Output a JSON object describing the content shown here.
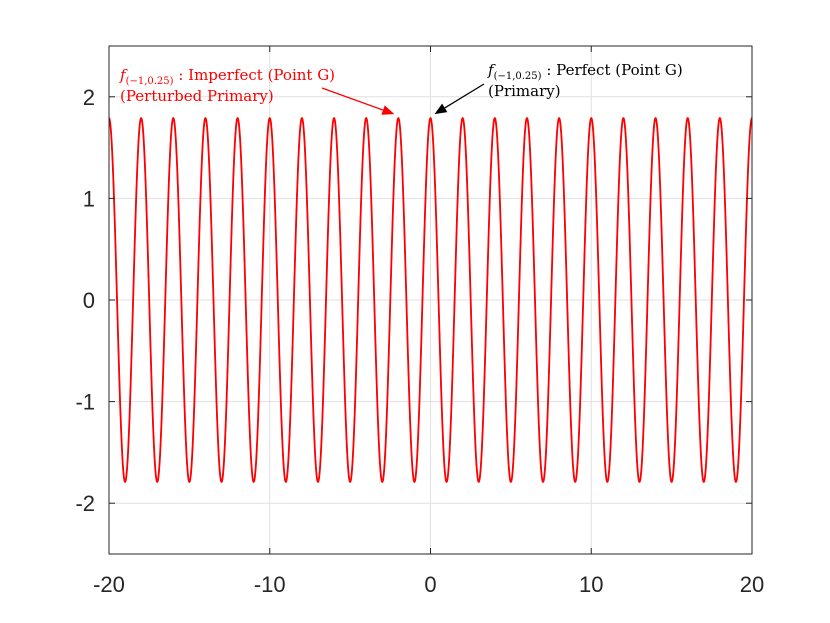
{
  "chart_data": {
    "type": "line",
    "title": "",
    "xlabel": "",
    "ylabel": "",
    "xlim": [
      -20,
      20
    ],
    "ylim": [
      -2.5,
      2.5
    ],
    "xticks": [
      -20,
      -10,
      0,
      10,
      20
    ],
    "yticks": [
      -2,
      -1,
      0,
      1,
      2
    ],
    "grid": true,
    "series": [
      {
        "color": "#ff0000",
        "amplitude": 1.79,
        "period": 2.0,
        "peak_x": [
          -18,
          -16,
          -14,
          -12,
          -10,
          -8,
          -6,
          -4,
          -2,
          0,
          2,
          4,
          6,
          8,
          10,
          12,
          14,
          16,
          18
        ],
        "trough_x": [
          -19,
          -17,
          -15,
          -13,
          -11,
          -9,
          -7,
          -5,
          -3,
          -1,
          1,
          3,
          5,
          7,
          9,
          11,
          13,
          15,
          17,
          19
        ]
      },
      {
        "color": "#000000",
        "amplitude": 1.79,
        "period": 2.0
      }
    ],
    "annotations": [
      {
        "id": "imperfect",
        "color": "#ff0000",
        "f": "f",
        "sub": "(−1,0.25)",
        "line1_rest": " : Imperfect (Point G)",
        "line2": "(Perturbed Primary)",
        "arrow_to": [
          -2,
          1.79
        ]
      },
      {
        "id": "perfect",
        "color": "#000000",
        "f": "f",
        "sub": "(−1,0.25)",
        "line1_rest": " : Perfect (Point G)",
        "line2": "(Primary)",
        "arrow_to": [
          0,
          1.79
        ]
      }
    ]
  }
}
